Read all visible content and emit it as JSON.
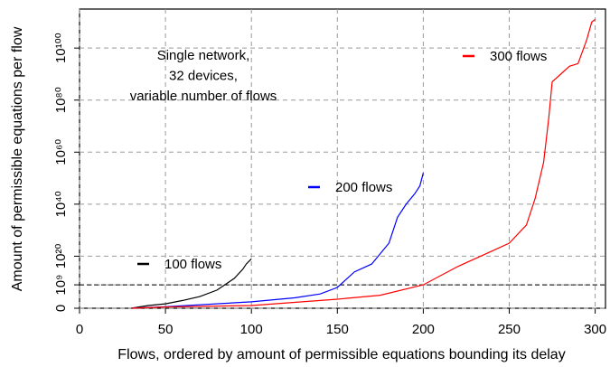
{
  "chart_data": {
    "type": "line",
    "xlabel": "Flows, ordered by amount of permissible equations bounding its delay",
    "ylabel": "Amount of permissible equations per flow",
    "annotation": [
      "Single network,",
      "32 devices,",
      "variable number of flows"
    ],
    "xlim": [
      0,
      306
    ],
    "xticks": [
      0,
      50,
      100,
      150,
      200,
      250,
      300
    ],
    "ylim": [
      0,
      1e+115
    ],
    "yscale": "log1p",
    "yticks": [
      {
        "value": 0,
        "label": "0"
      },
      {
        "value": 1000000000.0,
        "label": "10⁹"
      },
      {
        "value": 1e+20,
        "label": "10²⁰"
      },
      {
        "value": 1e+40,
        "label": "10⁴⁰"
      },
      {
        "value": 1e+60,
        "label": "10⁶⁰"
      },
      {
        "value": 1e+80,
        "label": "10⁸⁰"
      },
      {
        "value": 1e+100,
        "label": "10¹⁰⁰"
      }
    ],
    "reference_line": 1000000000.0,
    "grid": true,
    "series": [
      {
        "name": "100 flows",
        "color": "#000000",
        "x": [
          30,
          40,
          50,
          60,
          70,
          80,
          90,
          95,
          97,
          100
        ],
        "values": [
          0,
          10,
          50,
          1000,
          30000.0,
          10000000.0,
          300000000000.0,
          1000000000000000.0,
          1e+17,
          1e+19
        ]
      },
      {
        "name": "200 flows",
        "color": "#0000ff",
        "x": [
          30,
          50,
          100,
          125,
          140,
          150,
          160,
          170,
          180,
          185,
          190,
          195,
          198,
          200
        ],
        "values": [
          0,
          3,
          300,
          10000.0,
          300000.0,
          100000000.0,
          100000000000000.0,
          1e+17,
          1e+25,
          1e+35,
          1e+40,
          1e+44,
          1e+47,
          1e+52
        ]
      },
      {
        "name": "300 flows",
        "color": "#ff0000",
        "x": [
          30,
          50,
          100,
          150,
          175,
          200,
          220,
          240,
          250,
          260,
          265,
          270,
          273,
          275,
          280,
          285,
          290,
          295,
          298,
          300
        ],
        "values": [
          0,
          2,
          10,
          3000,
          100000.0,
          1000000000.0,
          1e+16,
          1e+22,
          1e+25,
          1e+32,
          1e+42,
          1e+56,
          1e+73,
          1e+87,
          1e+90,
          1e+93,
          1e+94,
          1e+103,
          1e+110,
          1e+111
        ]
      }
    ]
  }
}
